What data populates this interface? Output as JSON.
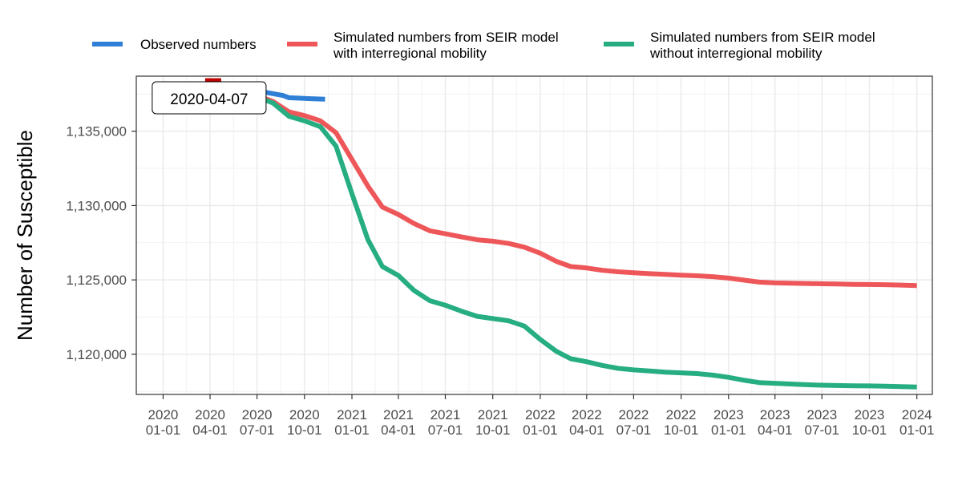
{
  "chart_data": {
    "type": "line",
    "title": "",
    "xlabel": "",
    "ylabel": "Number of Susceptible",
    "ylim": [
      1117300,
      1138700
    ],
    "xlim": [
      "2019-11-10",
      "2024-01-31"
    ],
    "y_ticks": [
      1120000,
      1125000,
      1130000,
      1135000
    ],
    "y_tick_labels": [
      "1,120,000",
      "1,125,000",
      "1,130,000",
      "1,135,000"
    ],
    "x_ticks": [
      "2020-01-01",
      "2020-04-01",
      "2020-07-01",
      "2020-10-01",
      "2021-01-01",
      "2021-04-01",
      "2021-07-01",
      "2021-10-01",
      "2022-01-01",
      "2022-04-01",
      "2022-07-01",
      "2022-10-01",
      "2023-01-01",
      "2023-04-01",
      "2023-07-01",
      "2023-10-01",
      "2024-01-01"
    ],
    "x_tick_labels": [
      [
        "2020",
        "01-01"
      ],
      [
        "2020",
        "04-01"
      ],
      [
        "2020",
        "07-01"
      ],
      [
        "2020",
        "10-01"
      ],
      [
        "2021",
        "01-01"
      ],
      [
        "2021",
        "04-01"
      ],
      [
        "2021",
        "07-01"
      ],
      [
        "2021",
        "10-01"
      ],
      [
        "2022",
        "01-01"
      ],
      [
        "2022",
        "04-01"
      ],
      [
        "2022",
        "07-01"
      ],
      [
        "2022",
        "10-01"
      ],
      [
        "2023",
        "01-01"
      ],
      [
        "2023",
        "04-01"
      ],
      [
        "2023",
        "07-01"
      ],
      [
        "2023",
        "10-01"
      ],
      [
        "2024",
        "01-01"
      ]
    ],
    "grid": true,
    "legend_position": "top",
    "annotation": {
      "label": "2020-04-07",
      "x": "2020-04-07",
      "marker_y": 1138400
    },
    "series": [
      {
        "name": "Observed numbers",
        "color": "#2f7fd6",
        "points": [
          [
            "2020-04-07",
            1137700
          ],
          [
            "2020-06-01",
            1137700
          ],
          [
            "2020-07-01",
            1137700
          ],
          [
            "2020-07-20",
            1137600
          ],
          [
            "2020-08-20",
            1137400
          ],
          [
            "2020-09-01",
            1137250
          ],
          [
            "2020-10-01",
            1137200
          ],
          [
            "2020-11-10",
            1137150
          ]
        ]
      },
      {
        "name": "Simulated numbers from SEIR model\nwith interregional mobility",
        "color": "#ee5759",
        "points": [
          [
            "2020-04-07",
            1137800
          ],
          [
            "2020-05-01",
            1137700
          ],
          [
            "2020-06-01",
            1137550
          ],
          [
            "2020-07-01",
            1137400
          ],
          [
            "2020-08-01",
            1137000
          ],
          [
            "2020-09-01",
            1136300
          ],
          [
            "2020-10-01",
            1136050
          ],
          [
            "2020-11-01",
            1135700
          ],
          [
            "2020-12-01",
            1134900
          ],
          [
            "2021-01-01",
            1133100
          ],
          [
            "2021-02-01",
            1131300
          ],
          [
            "2021-03-01",
            1129900
          ],
          [
            "2021-04-01",
            1129400
          ],
          [
            "2021-05-01",
            1128800
          ],
          [
            "2021-06-01",
            1128300
          ],
          [
            "2021-07-01",
            1128100
          ],
          [
            "2021-08-01",
            1127900
          ],
          [
            "2021-09-01",
            1127700
          ],
          [
            "2021-10-01",
            1127600
          ],
          [
            "2021-11-01",
            1127450
          ],
          [
            "2021-12-01",
            1127200
          ],
          [
            "2022-01-01",
            1126800
          ],
          [
            "2022-02-01",
            1126250
          ],
          [
            "2022-03-01",
            1125900
          ],
          [
            "2022-04-01",
            1125800
          ],
          [
            "2022-05-01",
            1125650
          ],
          [
            "2022-06-01",
            1125550
          ],
          [
            "2022-07-01",
            1125480
          ],
          [
            "2022-08-01",
            1125420
          ],
          [
            "2022-09-01",
            1125370
          ],
          [
            "2022-10-01",
            1125320
          ],
          [
            "2022-11-01",
            1125280
          ],
          [
            "2022-12-01",
            1125220
          ],
          [
            "2023-01-01",
            1125120
          ],
          [
            "2023-02-01",
            1124980
          ],
          [
            "2023-03-01",
            1124850
          ],
          [
            "2023-04-01",
            1124800
          ],
          [
            "2023-05-01",
            1124780
          ],
          [
            "2023-06-01",
            1124760
          ],
          [
            "2023-07-01",
            1124740
          ],
          [
            "2023-08-01",
            1124720
          ],
          [
            "2023-09-01",
            1124700
          ],
          [
            "2023-10-01",
            1124690
          ],
          [
            "2023-11-01",
            1124680
          ],
          [
            "2023-12-01",
            1124650
          ],
          [
            "2024-01-01",
            1124620
          ]
        ]
      },
      {
        "name": "Simulated numbers from SEIR model\nwithout interregional mobility",
        "color": "#26ad82",
        "points": [
          [
            "2020-04-07",
            1137800
          ],
          [
            "2020-05-01",
            1137700
          ],
          [
            "2020-06-01",
            1137500
          ],
          [
            "2020-07-01",
            1137300
          ],
          [
            "2020-08-01",
            1136900
          ],
          [
            "2020-09-01",
            1136000
          ],
          [
            "2020-10-01",
            1135700
          ],
          [
            "2020-11-01",
            1135300
          ],
          [
            "2020-12-01",
            1134000
          ],
          [
            "2021-01-01",
            1130800
          ],
          [
            "2021-02-01",
            1127700
          ],
          [
            "2021-03-01",
            1125900
          ],
          [
            "2021-04-01",
            1125300
          ],
          [
            "2021-05-01",
            1124300
          ],
          [
            "2021-06-01",
            1123600
          ],
          [
            "2021-07-01",
            1123300
          ],
          [
            "2021-08-01",
            1122900
          ],
          [
            "2021-09-01",
            1122550
          ],
          [
            "2021-10-01",
            1122400
          ],
          [
            "2021-11-01",
            1122250
          ],
          [
            "2021-12-01",
            1121900
          ],
          [
            "2022-01-01",
            1121000
          ],
          [
            "2022-02-01",
            1120200
          ],
          [
            "2022-03-01",
            1119700
          ],
          [
            "2022-04-01",
            1119500
          ],
          [
            "2022-05-01",
            1119250
          ],
          [
            "2022-06-01",
            1119050
          ],
          [
            "2022-07-01",
            1118950
          ],
          [
            "2022-08-01",
            1118880
          ],
          [
            "2022-09-01",
            1118800
          ],
          [
            "2022-10-01",
            1118750
          ],
          [
            "2022-11-01",
            1118700
          ],
          [
            "2022-12-01",
            1118600
          ],
          [
            "2023-01-01",
            1118450
          ],
          [
            "2023-02-01",
            1118250
          ],
          [
            "2023-03-01",
            1118100
          ],
          [
            "2023-04-01",
            1118050
          ],
          [
            "2023-05-01",
            1118000
          ],
          [
            "2023-06-01",
            1117950
          ],
          [
            "2023-07-01",
            1117920
          ],
          [
            "2023-08-01",
            1117900
          ],
          [
            "2023-09-01",
            1117880
          ],
          [
            "2023-10-01",
            1117870
          ],
          [
            "2023-11-01",
            1117850
          ],
          [
            "2023-12-01",
            1117830
          ],
          [
            "2024-01-01",
            1117800
          ]
        ]
      }
    ]
  }
}
